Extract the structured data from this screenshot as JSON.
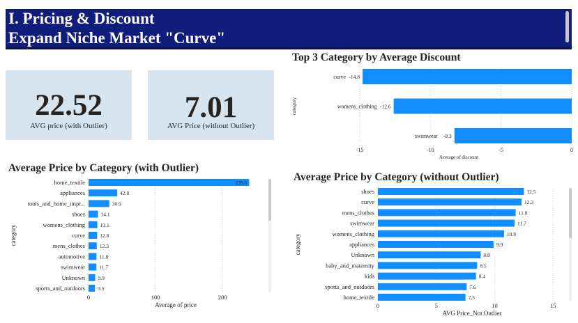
{
  "header": {
    "line1": "I. Pricing & Discount",
    "line2": "Expand Niche Market \"Curve\""
  },
  "cards": [
    {
      "value": "22.52",
      "label": "AVG price (with Outlier)"
    },
    {
      "value": "7.01",
      "label": "AVG Price (without Outlier)"
    }
  ],
  "colors": {
    "bar": "#118dff",
    "header_bg": "#111d7a",
    "card_bg": "#d6e4ef"
  },
  "chart_data": [
    {
      "type": "bar",
      "orientation": "horizontal",
      "title": "Top 3 Category by Average Discount",
      "xlabel": "Average of discount",
      "ylabel": "category",
      "categories": [
        "curve",
        "womens_clothing",
        "swimwear"
      ],
      "values": [
        -14.8,
        -12.6,
        -8.3
      ],
      "value_labels": [
        "-14.8",
        "-12.6",
        "-8.3"
      ],
      "xlim": [
        -15,
        0
      ],
      "xticks": [
        -15,
        -10,
        -5,
        0
      ],
      "xtick_labels": [
        "-15",
        "-10",
        "-5",
        "0"
      ]
    },
    {
      "type": "bar",
      "orientation": "horizontal",
      "title": "Average Price by Category (with Outlier)",
      "xlabel": "Average of price",
      "ylabel": "category",
      "categories": [
        "home_textile",
        "appliances",
        "tools_and_home_impr...",
        "shoes",
        "womens_clothing",
        "curve",
        "mens_clothes",
        "automotive",
        "swimwear",
        "Unknown",
        "sports_and_outdoors"
      ],
      "values": [
        239.6,
        42.8,
        30.9,
        14.1,
        13.1,
        12.8,
        12.3,
        11.8,
        11.7,
        9.9,
        9.5
      ],
      "value_labels": [
        "239.6",
        "42.8",
        "30.9",
        "14.1",
        "13.1",
        "12.8",
        "12.3",
        "11.8",
        "11.7",
        "9.9",
        "9.5"
      ],
      "xlim": [
        0,
        260
      ],
      "xticks": [
        0,
        100,
        200
      ],
      "xtick_labels": [
        "0",
        "100",
        "200"
      ]
    },
    {
      "type": "bar",
      "orientation": "horizontal",
      "title": "Average Price by Category (without Outlier)",
      "xlabel": "AVG Price_Not Outlier",
      "ylabel": "category",
      "categories": [
        "shoes",
        "curve",
        "mens_clothes",
        "swimwear",
        "womens_clothing",
        "appliances",
        "Unknown",
        "baby_and_maternity",
        "kids",
        "sports_and_outdoors",
        "home_textile"
      ],
      "values": [
        12.5,
        12.3,
        11.8,
        11.7,
        10.8,
        9.9,
        8.8,
        8.5,
        8.4,
        7.6,
        7.5
      ],
      "value_labels": [
        "12.5",
        "12.3",
        "11.8",
        "11.7",
        "10.8",
        "9.9",
        "8.8",
        "8.5",
        "8.4",
        "7.6",
        "7.5"
      ],
      "xlim": [
        0,
        16
      ],
      "xticks": [
        0,
        5,
        10,
        15
      ],
      "xtick_labels": [
        "0",
        "5",
        "10",
        "15"
      ]
    }
  ]
}
